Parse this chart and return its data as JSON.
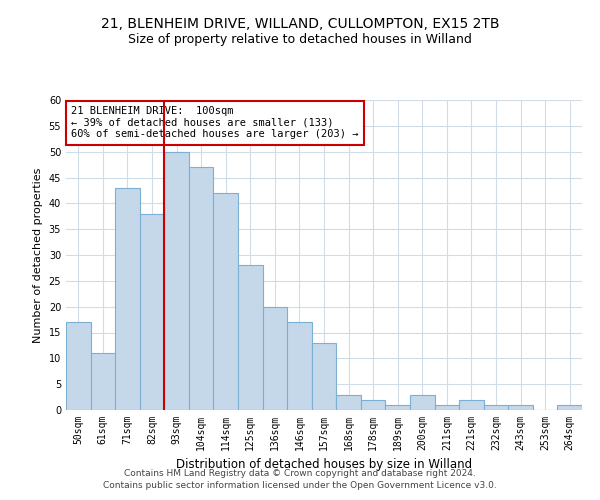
{
  "title1": "21, BLENHEIM DRIVE, WILLAND, CULLOMPTON, EX15 2TB",
  "title2": "Size of property relative to detached houses in Willand",
  "xlabel": "Distribution of detached houses by size in Willand",
  "ylabel": "Number of detached properties",
  "categories": [
    "50sqm",
    "61sqm",
    "71sqm",
    "82sqm",
    "93sqm",
    "104sqm",
    "114sqm",
    "125sqm",
    "136sqm",
    "146sqm",
    "157sqm",
    "168sqm",
    "178sqm",
    "189sqm",
    "200sqm",
    "211sqm",
    "221sqm",
    "232sqm",
    "243sqm",
    "253sqm",
    "264sqm"
  ],
  "values": [
    17,
    11,
    43,
    38,
    50,
    47,
    42,
    28,
    20,
    17,
    13,
    3,
    2,
    1,
    3,
    1,
    2,
    1,
    1,
    0,
    1
  ],
  "bar_color": "#c5d8ea",
  "bar_edge_color": "#7bafd4",
  "property_line_idx": 4,
  "annotation_line1": "21 BLENHEIM DRIVE:  100sqm",
  "annotation_line2": "← 39% of detached houses are smaller (133)",
  "annotation_line3": "60% of semi-detached houses are larger (203) →",
  "annotation_box_color": "#ffffff",
  "annotation_box_edge": "#cc0000",
  "vline_color": "#cc0000",
  "ylim": [
    0,
    60
  ],
  "yticks": [
    0,
    5,
    10,
    15,
    20,
    25,
    30,
    35,
    40,
    45,
    50,
    55,
    60
  ],
  "footer1": "Contains HM Land Registry data © Crown copyright and database right 2024.",
  "footer2": "Contains public sector information licensed under the Open Government Licence v3.0.",
  "bg_color": "#ffffff",
  "grid_color": "#d0dce8",
  "title1_fontsize": 10,
  "title2_fontsize": 9,
  "xlabel_fontsize": 8.5,
  "ylabel_fontsize": 8,
  "tick_fontsize": 7,
  "footer_fontsize": 6.5,
  "annot_fontsize": 7.5
}
